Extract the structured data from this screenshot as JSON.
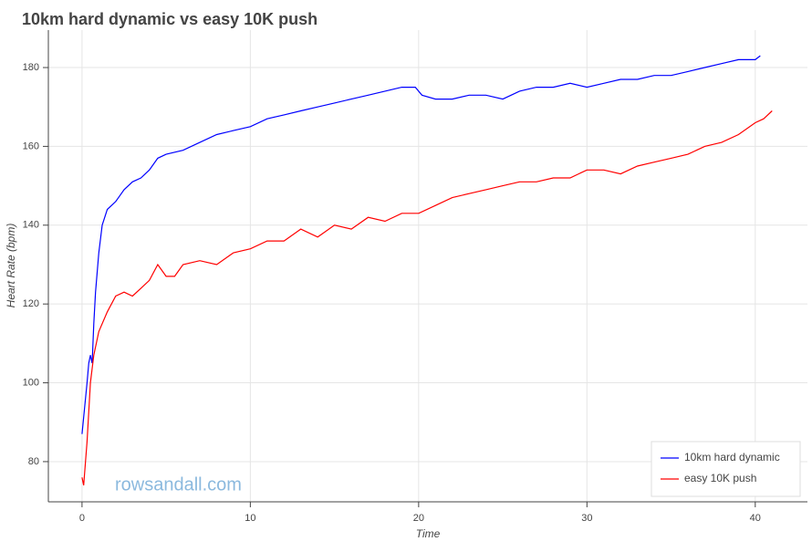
{
  "chart_data": {
    "type": "line",
    "title": "10km hard dynamic vs easy 10K push",
    "x_label": "Time",
    "y_label": "Heart Rate (bpm)",
    "watermark": "rowsandall.com",
    "xlim": [
      -2,
      43.1
    ],
    "ylim": [
      69.8,
      189.5
    ],
    "xticks": [
      0,
      10,
      20,
      30,
      40
    ],
    "yticks": [
      80,
      100,
      120,
      140,
      160,
      180
    ],
    "grid": true,
    "legend": "bottom-right",
    "series": [
      {
        "name": "10km hard dynamic",
        "color": "#0000ff",
        "x": [
          0,
          0.3,
          0.4,
          0.5,
          0.6,
          0.7,
          0.8,
          1,
          1.2,
          1.5,
          2,
          2.5,
          3,
          3.5,
          4,
          4.5,
          5,
          6,
          7,
          8,
          9,
          10,
          11,
          12,
          13,
          14,
          15,
          16,
          17,
          18,
          19,
          19.8,
          20.2,
          21,
          22,
          23,
          24,
          25,
          26,
          27,
          28,
          29,
          30,
          31,
          32,
          33,
          34,
          35,
          36,
          37,
          38,
          39,
          40,
          40.3
        ],
        "values": [
          87,
          100,
          105,
          107,
          105,
          115,
          123,
          133,
          140,
          144,
          146,
          149,
          151,
          152,
          154,
          157,
          158,
          159,
          161,
          163,
          164,
          165,
          167,
          168,
          169,
          170,
          171,
          172,
          173,
          174,
          175,
          175,
          173,
          172,
          172,
          173,
          173,
          172,
          174,
          175,
          175,
          176,
          175,
          176,
          177,
          177,
          178,
          178,
          179,
          180,
          181,
          182,
          182,
          183
        ]
      },
      {
        "name": "easy 10K push",
        "color": "#ff0000",
        "x": [
          0,
          0.1,
          0.3,
          0.5,
          0.7,
          1,
          1.5,
          2,
          2.5,
          3,
          3.5,
          4,
          4.5,
          5,
          5.5,
          6,
          7,
          8,
          9,
          10,
          11,
          12,
          13,
          14,
          15,
          16,
          17,
          18,
          19,
          20,
          21,
          22,
          23,
          24,
          25,
          26,
          27,
          28,
          29,
          30,
          31,
          32,
          33,
          34,
          35,
          36,
          37,
          38,
          39,
          40,
          40.5,
          41
        ],
        "values": [
          76,
          74,
          85,
          100,
          107,
          113,
          118,
          122,
          123,
          122,
          124,
          126,
          130,
          127,
          127,
          130,
          131,
          130,
          133,
          134,
          136,
          136,
          139,
          137,
          140,
          139,
          142,
          141,
          143,
          143,
          145,
          147,
          148,
          149,
          150,
          151,
          151,
          152,
          152,
          154,
          154,
          153,
          155,
          156,
          157,
          158,
          160,
          161,
          163,
          166,
          167,
          169
        ]
      }
    ]
  }
}
